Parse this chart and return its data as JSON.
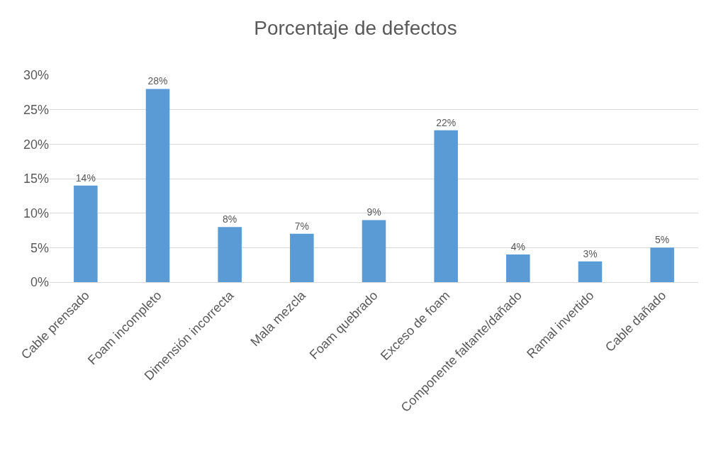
{
  "chart_data": {
    "type": "bar",
    "title": "Porcentaje de defectos",
    "categories": [
      "Cable prensado",
      "Foam incompleto",
      "Dimensión incorrecta",
      "Mala mezcla",
      "Foam quebrado",
      "Exceso de foam",
      "Componente faltante/dañado",
      "Ramal invertido",
      "Cable dañado"
    ],
    "values": [
      14,
      28,
      8,
      7,
      9,
      22,
      4,
      3,
      5
    ],
    "value_labels": [
      "14%",
      "28%",
      "8%",
      "7%",
      "9%",
      "22%",
      "4%",
      "3%",
      "5%"
    ],
    "color": "#5b9bd5",
    "ylim": [
      0,
      30
    ],
    "yticks": [
      {
        "value": 0,
        "label": "0%"
      },
      {
        "value": 5,
        "label": "5%"
      },
      {
        "value": 10,
        "label": "10%"
      },
      {
        "value": 15,
        "label": "15%"
      },
      {
        "value": 20,
        "label": "20%"
      },
      {
        "value": 25,
        "label": "25%"
      },
      {
        "value": 30,
        "label": "30%"
      }
    ],
    "grid": "y"
  }
}
